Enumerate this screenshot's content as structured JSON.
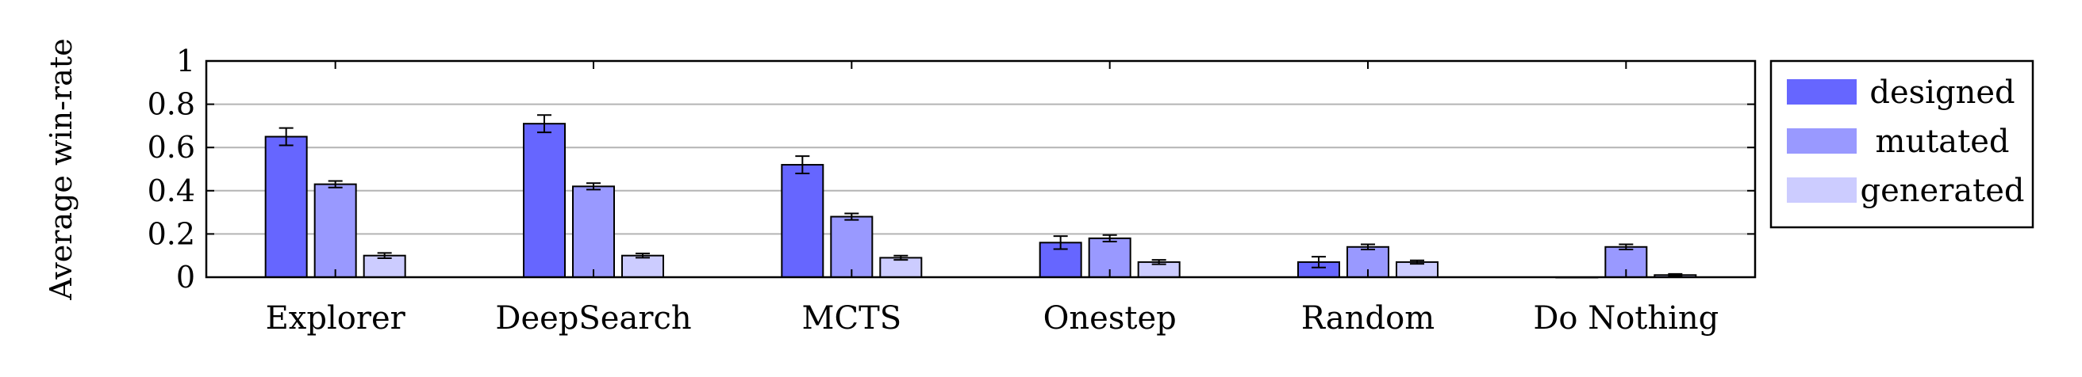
{
  "chart_data": {
    "type": "bar",
    "ylabel": "Average win-rate",
    "xlabel": "",
    "ylim": [
      0,
      1
    ],
    "yticks": [
      0,
      0.2,
      0.4,
      0.6,
      0.8,
      1
    ],
    "ytick_labels": [
      "0",
      "0.2",
      "0.4",
      "0.6",
      "0.8",
      "1"
    ],
    "grid": "horizontal",
    "legend": "right",
    "categories": [
      "Explorer",
      "DeepSearch",
      "MCTS",
      "Onestep",
      "Random",
      "Do Nothing"
    ],
    "series": [
      {
        "name": "designed",
        "color": "#6666ff",
        "values": [
          0.65,
          0.71,
          0.52,
          0.16,
          0.07,
          0.0
        ],
        "errors": [
          0.04,
          0.04,
          0.04,
          0.03,
          0.025,
          0.0
        ]
      },
      {
        "name": "mutated",
        "color": "#9999ff",
        "values": [
          0.43,
          0.42,
          0.28,
          0.18,
          0.14,
          0.14
        ],
        "errors": [
          0.015,
          0.015,
          0.015,
          0.015,
          0.012,
          0.012
        ]
      },
      {
        "name": "generated",
        "color": "#ccccff",
        "values": [
          0.1,
          0.1,
          0.09,
          0.07,
          0.07,
          0.01
        ],
        "errors": [
          0.012,
          0.01,
          0.01,
          0.01,
          0.008,
          0.005
        ]
      }
    ]
  }
}
